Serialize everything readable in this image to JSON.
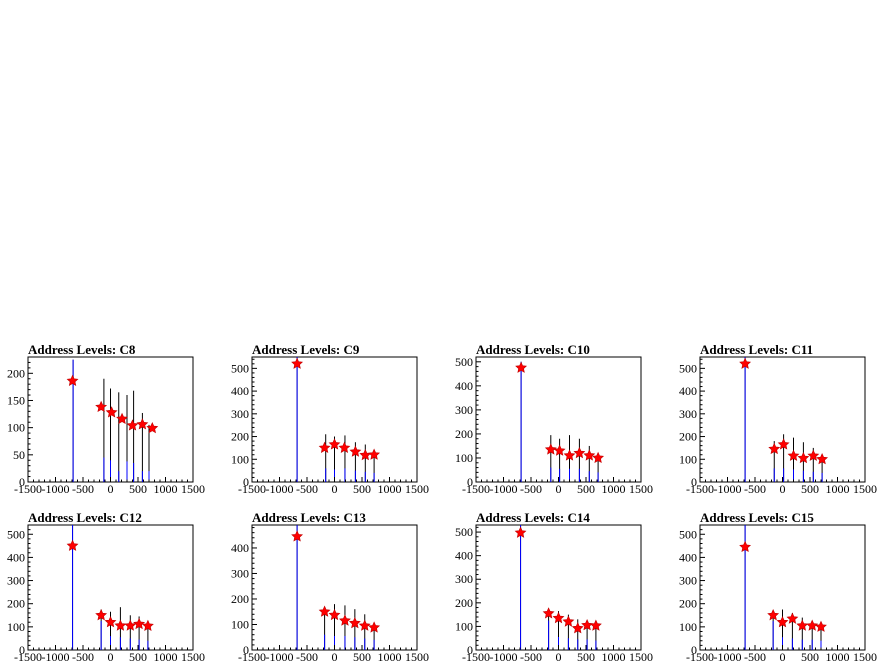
{
  "chart_data": [
    {
      "type": "histogram",
      "title": "Address Levels: C8",
      "xlim": [
        -1500,
        1500
      ],
      "ylim": [
        0,
        230
      ],
      "xticks": [
        -1500,
        -1000,
        -500,
        0,
        500,
        1000,
        1500
      ],
      "yticks": [
        0,
        50,
        100,
        150,
        200
      ],
      "spikes": [
        {
          "x": -680,
          "black": 225,
          "blue": 225
        },
        {
          "x": -120,
          "black": 190,
          "blue": 45
        },
        {
          "x": 0,
          "black": 172,
          "blue": 40
        },
        {
          "x": 150,
          "black": 165,
          "blue": 20
        },
        {
          "x": 300,
          "black": 160,
          "blue": 38
        },
        {
          "x": 420,
          "black": 168,
          "blue": 35
        },
        {
          "x": 580,
          "black": 127,
          "blue": 20
        },
        {
          "x": 700,
          "black": 105,
          "blue": 20
        }
      ],
      "peaks": [
        {
          "x": -690,
          "y": 186
        },
        {
          "x": -170,
          "y": 138
        },
        {
          "x": 20,
          "y": 128
        },
        {
          "x": 210,
          "y": 116
        },
        {
          "x": 400,
          "y": 104
        },
        {
          "x": 580,
          "y": 106
        },
        {
          "x": 760,
          "y": 99
        }
      ]
    },
    {
      "type": "histogram",
      "title": "Address Levels: C9",
      "xlim": [
        -1500,
        1500
      ],
      "ylim": [
        0,
        550
      ],
      "xticks": [
        -1500,
        -1000,
        -500,
        0,
        500,
        1000,
        1500
      ],
      "yticks": [
        0,
        100,
        200,
        300,
        400,
        500
      ],
      "spikes": [
        {
          "x": -680,
          "black": 550,
          "blue": 550
        },
        {
          "x": -160,
          "black": 210,
          "blue": 60
        },
        {
          "x": 0,
          "black": 200,
          "blue": 55
        },
        {
          "x": 190,
          "black": 205,
          "blue": 60
        },
        {
          "x": 380,
          "black": 175,
          "blue": 50
        },
        {
          "x": 560,
          "black": 165,
          "blue": 45
        },
        {
          "x": 720,
          "black": 130,
          "blue": 40
        }
      ],
      "peaks": [
        {
          "x": -680,
          "y": 520
        },
        {
          "x": -180,
          "y": 150
        },
        {
          "x": 0,
          "y": 165
        },
        {
          "x": 180,
          "y": 150
        },
        {
          "x": 380,
          "y": 133
        },
        {
          "x": 560,
          "y": 118
        },
        {
          "x": 720,
          "y": 120
        }
      ]
    },
    {
      "type": "histogram",
      "title": "Address Levels: C10",
      "xlim": [
        -1500,
        1500
      ],
      "ylim": [
        0,
        520
      ],
      "xticks": [
        -1500,
        -1000,
        -500,
        0,
        500,
        1000,
        1500
      ],
      "yticks": [
        0,
        100,
        200,
        300,
        400,
        500
      ],
      "spikes": [
        {
          "x": -680,
          "black": 500,
          "blue": 500
        },
        {
          "x": -140,
          "black": 195,
          "blue": 60
        },
        {
          "x": 20,
          "black": 180,
          "blue": 55
        },
        {
          "x": 200,
          "black": 195,
          "blue": 55
        },
        {
          "x": 380,
          "black": 180,
          "blue": 55
        },
        {
          "x": 560,
          "black": 150,
          "blue": 45
        },
        {
          "x": 720,
          "black": 115,
          "blue": 40
        }
      ],
      "peaks": [
        {
          "x": -680,
          "y": 475
        },
        {
          "x": -140,
          "y": 135
        },
        {
          "x": 20,
          "y": 130
        },
        {
          "x": 200,
          "y": 110
        },
        {
          "x": 380,
          "y": 120
        },
        {
          "x": 560,
          "y": 110
        },
        {
          "x": 720,
          "y": 100
        }
      ]
    },
    {
      "type": "histogram",
      "title": "Address Levels: C11",
      "xlim": [
        -1500,
        1500
      ],
      "ylim": [
        0,
        550
      ],
      "xticks": [
        -1500,
        -1000,
        -500,
        0,
        500,
        1000,
        1500
      ],
      "yticks": [
        0,
        100,
        200,
        300,
        400,
        500
      ],
      "spikes": [
        {
          "x": -680,
          "black": 550,
          "blue": 550
        },
        {
          "x": -150,
          "black": 180,
          "blue": 60
        },
        {
          "x": 20,
          "black": 210,
          "blue": 60
        },
        {
          "x": 200,
          "black": 195,
          "blue": 55
        },
        {
          "x": 380,
          "black": 175,
          "blue": 50
        },
        {
          "x": 560,
          "black": 150,
          "blue": 45
        },
        {
          "x": 720,
          "black": 120,
          "blue": 40
        }
      ],
      "peaks": [
        {
          "x": -680,
          "y": 520
        },
        {
          "x": -150,
          "y": 145
        },
        {
          "x": 20,
          "y": 165
        },
        {
          "x": 200,
          "y": 115
        },
        {
          "x": 380,
          "y": 105
        },
        {
          "x": 560,
          "y": 115
        },
        {
          "x": 720,
          "y": 100
        }
      ]
    },
    {
      "type": "histogram",
      "title": "Address Levels: C12",
      "xlim": [
        -1500,
        1500
      ],
      "ylim": [
        0,
        540
      ],
      "xticks": [
        -1500,
        -1000,
        -500,
        0,
        500,
        1000,
        1500
      ],
      "yticks": [
        0,
        100,
        200,
        300,
        400,
        500
      ],
      "spikes": [
        {
          "x": -690,
          "black": 540,
          "blue": 540
        },
        {
          "x": -170,
          "black": 175,
          "blue": 125
        },
        {
          "x": 0,
          "black": 165,
          "blue": 60
        },
        {
          "x": 180,
          "black": 185,
          "blue": 55
        },
        {
          "x": 360,
          "black": 150,
          "blue": 50
        },
        {
          "x": 520,
          "black": 145,
          "blue": 45
        },
        {
          "x": 680,
          "black": 120,
          "blue": 40
        }
      ],
      "peaks": [
        {
          "x": -690,
          "y": 450
        },
        {
          "x": -170,
          "y": 150
        },
        {
          "x": 0,
          "y": 120
        },
        {
          "x": 180,
          "y": 105
        },
        {
          "x": 360,
          "y": 105
        },
        {
          "x": 520,
          "y": 112
        },
        {
          "x": 680,
          "y": 104
        }
      ]
    },
    {
      "type": "histogram",
      "title": "Address Levels: C13",
      "xlim": [
        -1500,
        1500
      ],
      "ylim": [
        0,
        490
      ],
      "xticks": [
        -1500,
        -1000,
        -500,
        0,
        500,
        1000,
        1500
      ],
      "yticks": [
        0,
        100,
        200,
        300,
        400
      ],
      "spikes": [
        {
          "x": -680,
          "black": 490,
          "blue": 490
        },
        {
          "x": -180,
          "black": 165,
          "blue": 60
        },
        {
          "x": 0,
          "black": 180,
          "blue": 55
        },
        {
          "x": 190,
          "black": 175,
          "blue": 55
        },
        {
          "x": 370,
          "black": 160,
          "blue": 50
        },
        {
          "x": 550,
          "black": 140,
          "blue": 45
        },
        {
          "x": 720,
          "black": 105,
          "blue": 40
        }
      ],
      "peaks": [
        {
          "x": -680,
          "y": 445
        },
        {
          "x": -180,
          "y": 150
        },
        {
          "x": 0,
          "y": 137
        },
        {
          "x": 190,
          "y": 115
        },
        {
          "x": 370,
          "y": 105
        },
        {
          "x": 550,
          "y": 95
        },
        {
          "x": 720,
          "y": 88
        }
      ]
    },
    {
      "type": "histogram",
      "title": "Address Levels: C14",
      "xlim": [
        -1500,
        1500
      ],
      "ylim": [
        0,
        530
      ],
      "xticks": [
        -1500,
        -1000,
        -500,
        0,
        500,
        1000,
        1500
      ],
      "yticks": [
        0,
        100,
        200,
        300,
        400,
        500
      ],
      "spikes": [
        {
          "x": -690,
          "black": 530,
          "blue": 530
        },
        {
          "x": -180,
          "black": 160,
          "blue": 125
        },
        {
          "x": 0,
          "black": 165,
          "blue": 55
        },
        {
          "x": 180,
          "black": 150,
          "blue": 50
        },
        {
          "x": 350,
          "black": 130,
          "blue": 45
        },
        {
          "x": 520,
          "black": 125,
          "blue": 45
        },
        {
          "x": 680,
          "black": 115,
          "blue": 40
        }
      ],
      "peaks": [
        {
          "x": -690,
          "y": 497
        },
        {
          "x": -180,
          "y": 155
        },
        {
          "x": 0,
          "y": 135
        },
        {
          "x": 180,
          "y": 120
        },
        {
          "x": 350,
          "y": 92
        },
        {
          "x": 520,
          "y": 105
        },
        {
          "x": 680,
          "y": 103
        }
      ]
    },
    {
      "type": "histogram",
      "title": "Address Levels: C15",
      "xlim": [
        -1500,
        1500
      ],
      "ylim": [
        0,
        540
      ],
      "xticks": [
        -1500,
        -1000,
        -500,
        0,
        500,
        1000,
        1500
      ],
      "yticks": [
        0,
        100,
        200,
        300,
        400,
        500
      ],
      "spikes": [
        {
          "x": -680,
          "black": 540,
          "blue": 540
        },
        {
          "x": -170,
          "black": 165,
          "blue": 125
        },
        {
          "x": 0,
          "black": 175,
          "blue": 55
        },
        {
          "x": 180,
          "black": 160,
          "blue": 50
        },
        {
          "x": 360,
          "black": 140,
          "blue": 45
        },
        {
          "x": 540,
          "black": 125,
          "blue": 45
        },
        {
          "x": 700,
          "black": 115,
          "blue": 40
        }
      ],
      "peaks": [
        {
          "x": -680,
          "y": 445
        },
        {
          "x": -170,
          "y": 150
        },
        {
          "x": 0,
          "y": 120
        },
        {
          "x": 180,
          "y": 135
        },
        {
          "x": 360,
          "y": 105
        },
        {
          "x": 540,
          "y": 105
        },
        {
          "x": 700,
          "y": 100
        }
      ]
    }
  ],
  "colors": {
    "frame": "#000000",
    "black_hist": "#000000",
    "blue_hist": "#0000ff",
    "marker": "#ff0000"
  }
}
